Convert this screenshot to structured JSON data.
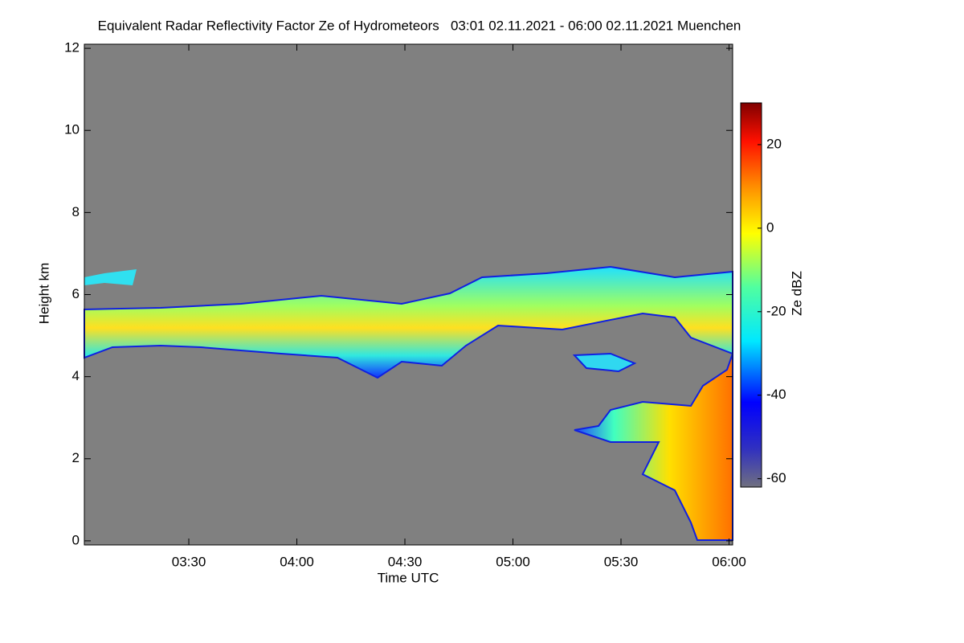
{
  "chart_data": {
    "type": "heatmap",
    "title": "Equivalent Radar Reflectivity Factor Ze of Hydrometeors   03:01 02.11.2021 - 06:00 02.11.2021 Muenchen",
    "x_label": "Time UTC",
    "y_label": "Height km",
    "colorbar_label": "Ze dBZ",
    "xlim": [
      181,
      361
    ],
    "xticks": [
      {
        "value": 210,
        "label": "03:30"
      },
      {
        "value": 240,
        "label": "04:00"
      },
      {
        "value": 270,
        "label": "04:30"
      },
      {
        "value": 300,
        "label": "05:00"
      },
      {
        "value": 330,
        "label": "05:30"
      },
      {
        "value": 360,
        "label": "06:00"
      }
    ],
    "ylim": [
      -0.1,
      12.1
    ],
    "yticks": [
      0,
      2,
      4,
      6,
      8,
      10,
      12
    ],
    "clim": [
      -62,
      30
    ],
    "cticks": [
      -60,
      -40,
      -20,
      0,
      20
    ],
    "background": "#808080"
  }
}
